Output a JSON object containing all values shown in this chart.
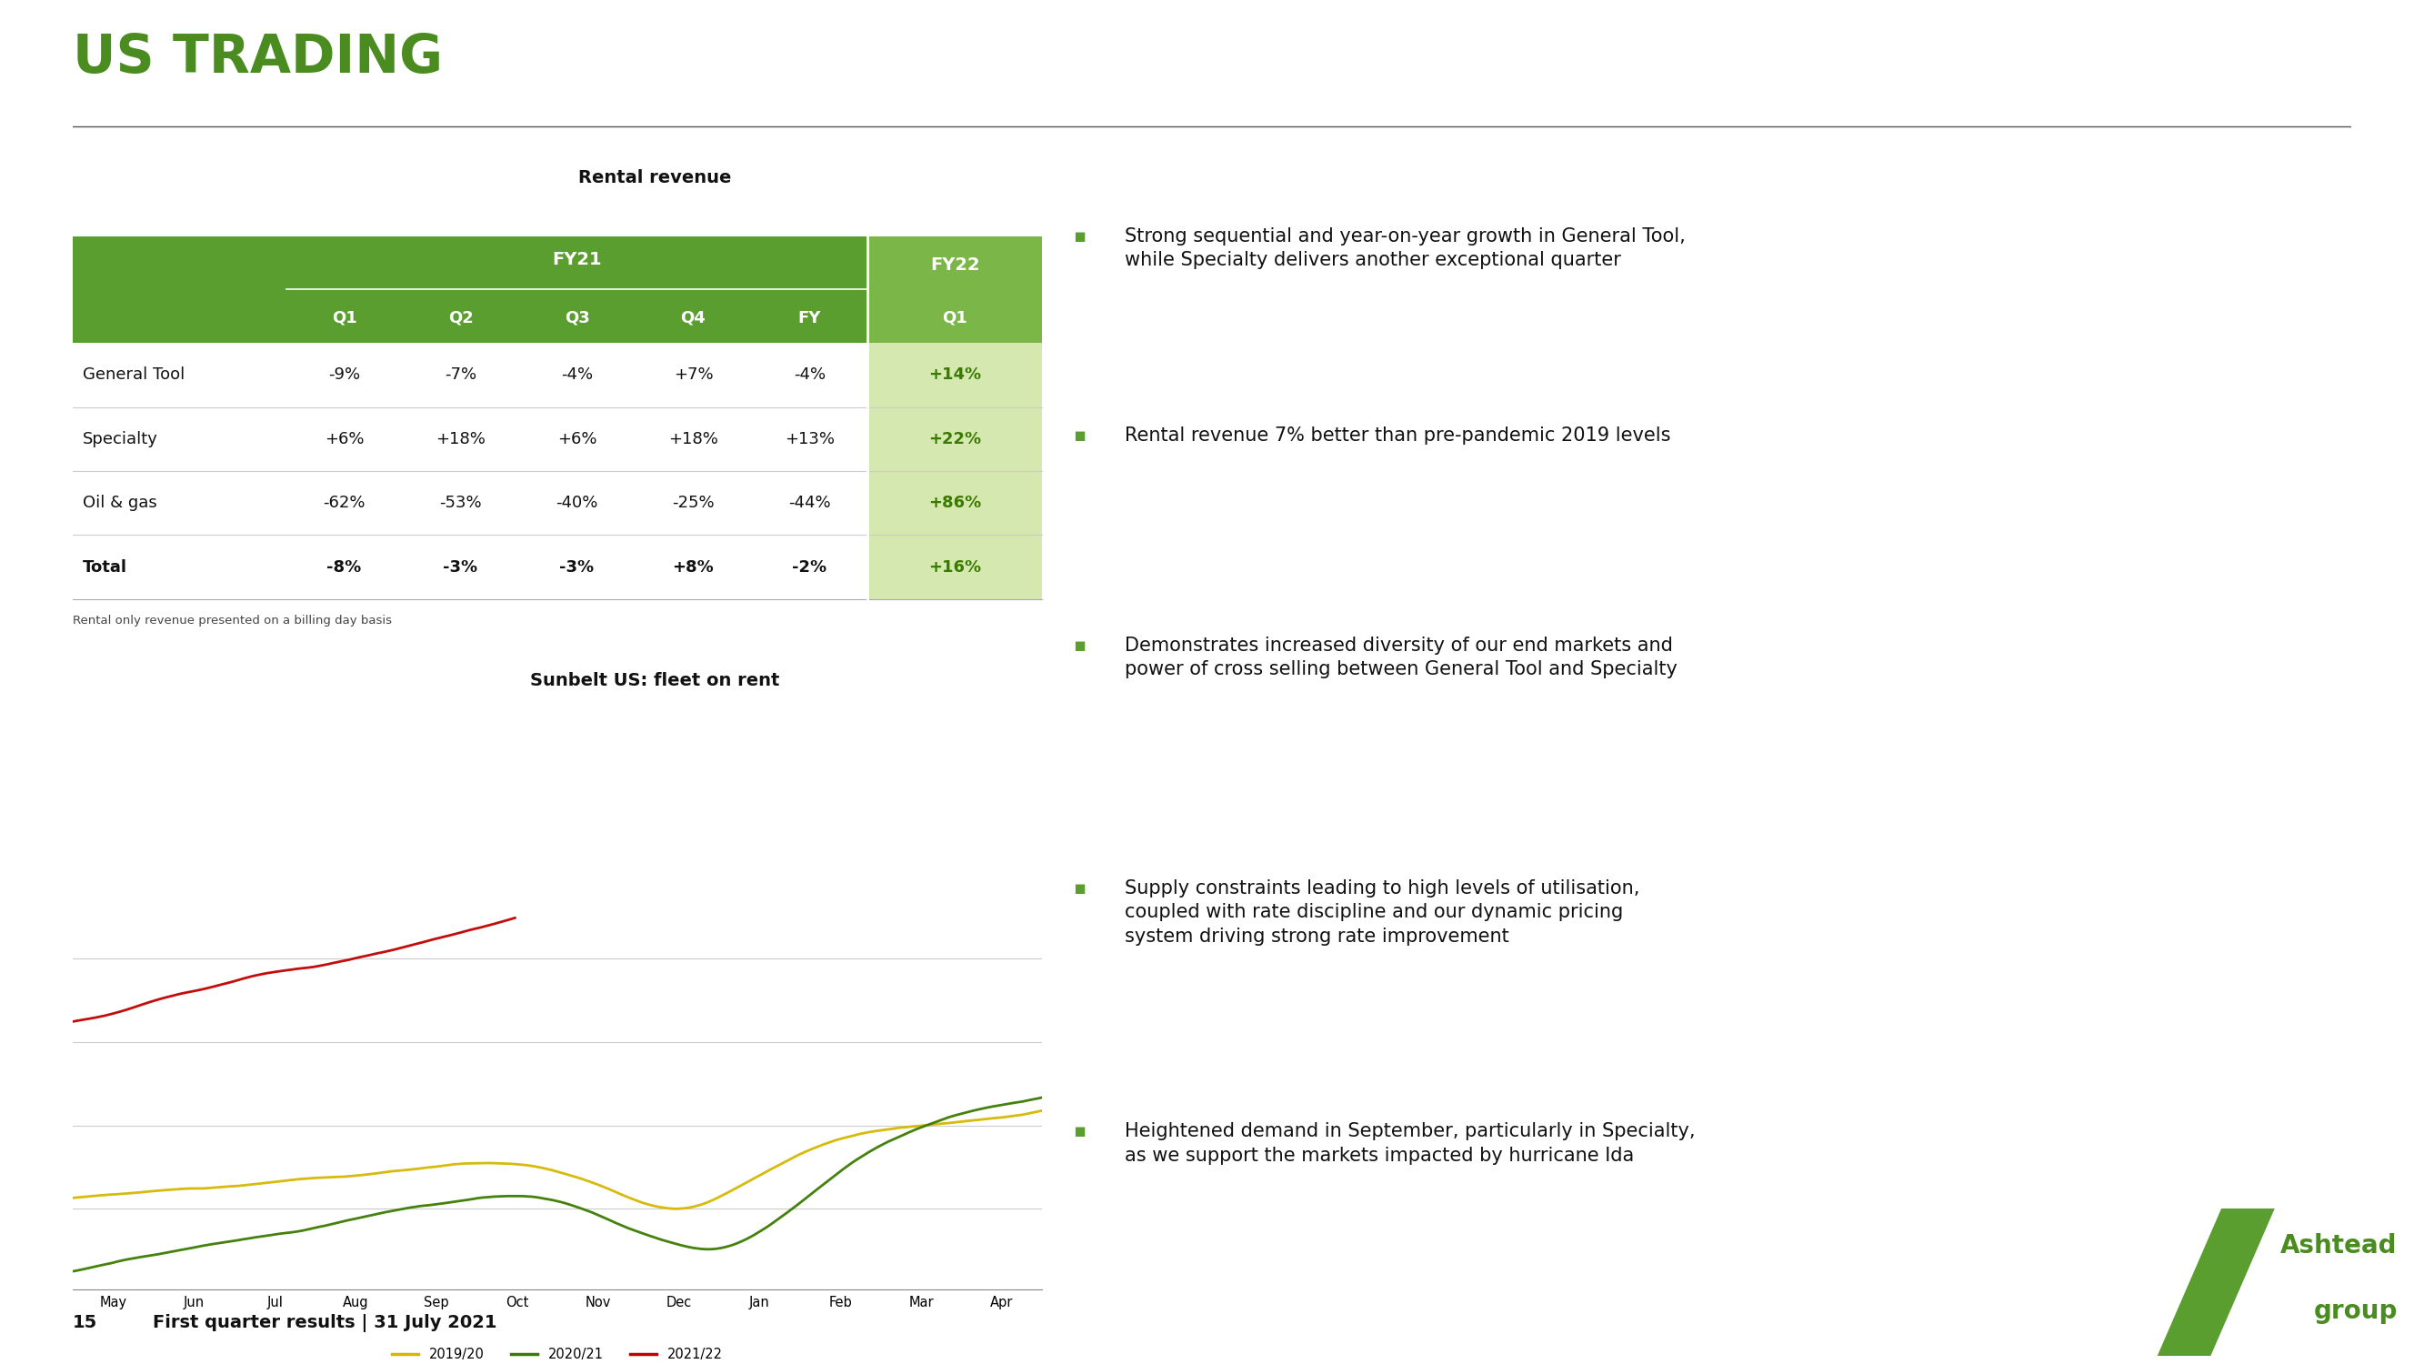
{
  "title": "US TRADING",
  "slide_number": "15",
  "slide_footer": "First quarter results | 31 July 2021",
  "table_title": "Rental revenue",
  "chart_title": "Sunbelt US: fleet on rent",
  "table_header_bg": "#5a9e2f",
  "table_fy21_label": "FY21",
  "table_fy22_label": "FY22",
  "table_rows": [
    {
      "label": "General Tool",
      "q1": "-9%",
      "q2": "-7%",
      "q3": "-4%",
      "q4": "+7%",
      "fy": "-4%",
      "fy22q1": "+14%",
      "bold": false
    },
    {
      "label": "Specialty",
      "q1": "+6%",
      "q2": "+18%",
      "q3": "+6%",
      "q4": "+18%",
      "fy": "+13%",
      "fy22q1": "+22%",
      "bold": false
    },
    {
      "label": "Oil & gas",
      "q1": "-62%",
      "q2": "-53%",
      "q3": "-40%",
      "q4": "-25%",
      "fy": "-44%",
      "fy22q1": "+86%",
      "bold": false
    },
    {
      "label": "Total",
      "q1": "-8%",
      "q2": "-3%",
      "q3": "-3%",
      "q4": "+8%",
      "fy": "-2%",
      "fy22q1": "+16%",
      "bold": true
    }
  ],
  "bullet_points": [
    "Strong sequential and year-on-year growth in General Tool,\nwhile Specialty delivers another exceptional quarter",
    "Rental revenue 7% better than pre-pandemic 2019 levels",
    "Demonstrates increased diversity of our end markets and\npower of cross selling between General Tool and Specialty",
    "Supply constraints leading to high levels of utilisation,\ncoupled with rate discipline and our dynamic pricing\nsystem driving strong rate improvement",
    "Heightened demand in September, particularly in Specialty,\nas we support the markets impacted by hurricane Ida"
  ],
  "line_note": "Rental only revenue presented on a billing day basis",
  "legend_items": [
    "2019/20",
    "2020/21",
    "2021/22"
  ],
  "legend_colors": [
    "#d4b800",
    "#3a7a00",
    "#c00000"
  ],
  "x_labels": [
    "May",
    "Jun",
    "Jul",
    "Aug",
    "Sep",
    "Oct",
    "Nov",
    "Dec",
    "Jan",
    "Feb",
    "Mar",
    "Apr"
  ],
  "green_dark": "#4a7c1f",
  "green_header": "#5a9e2f",
  "green_title": "#4a8c1f",
  "fy22_bg": "#7ab648",
  "fy22_data_bg": "#d4e8b0",
  "separator_color": "#cccccc",
  "bg_color": "#ffffff"
}
